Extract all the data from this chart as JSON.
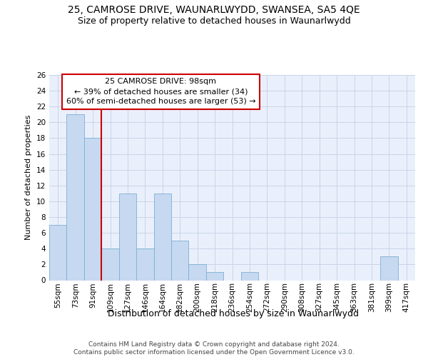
{
  "title": "25, CAMROSE DRIVE, WAUNARLWYDD, SWANSEA, SA5 4QE",
  "subtitle": "Size of property relative to detached houses in Waunarlwydd",
  "xlabel": "Distribution of detached houses by size in Waunarlwydd",
  "ylabel": "Number of detached properties",
  "categories": [
    "55sqm",
    "73sqm",
    "91sqm",
    "109sqm",
    "127sqm",
    "146sqm",
    "164sqm",
    "182sqm",
    "200sqm",
    "218sqm",
    "236sqm",
    "254sqm",
    "272sqm",
    "290sqm",
    "308sqm",
    "327sqm",
    "345sqm",
    "363sqm",
    "381sqm",
    "399sqm",
    "417sqm"
  ],
  "values": [
    7,
    21,
    18,
    4,
    11,
    4,
    11,
    5,
    2,
    1,
    0,
    1,
    0,
    0,
    0,
    0,
    0,
    0,
    0,
    3,
    0
  ],
  "bar_color": "#c6d9f0",
  "bar_edge_color": "#7bafd4",
  "red_line_color": "#cc0000",
  "annotation_text": "25 CAMROSE DRIVE: 98sqm\n← 39% of detached houses are smaller (34)\n60% of semi-detached houses are larger (53) →",
  "annotation_box_facecolor": "#ffffff",
  "annotation_box_edgecolor": "#cc0000",
  "grid_color": "#c8d4e8",
  "plot_bg_color": "#eaf0fb",
  "ylim": [
    0,
    26
  ],
  "yticks": [
    0,
    2,
    4,
    6,
    8,
    10,
    12,
    14,
    16,
    18,
    20,
    22,
    24,
    26
  ],
  "footnote": "Contains HM Land Registry data © Crown copyright and database right 2024.\nContains public sector information licensed under the Open Government Licence v3.0.",
  "title_fontsize": 10,
  "subtitle_fontsize": 9,
  "ylabel_fontsize": 8,
  "xlabel_fontsize": 9,
  "tick_fontsize": 7.5,
  "footnote_fontsize": 6.5
}
